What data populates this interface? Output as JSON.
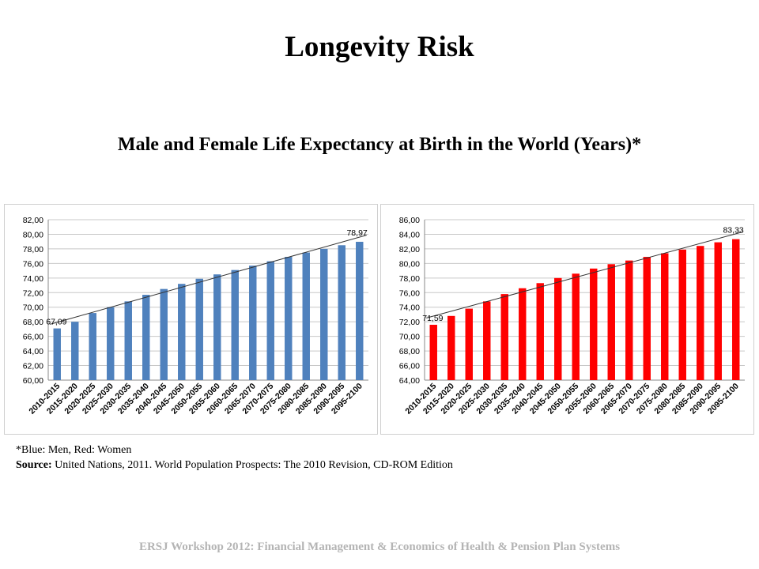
{
  "slide": {
    "title": "Longevity Risk",
    "subtitle": "Male and Female Life Expectancy at Birth in the World (Years)*",
    "note": "*Blue: Men, Red: Women",
    "source_label": "Source:",
    "source_text": "United Nations, 2011. World Population Prospects: The 2010 Revision, CD-ROM Edition",
    "footer": "ERSJ Workshop 2012: Financial Management & Economics of  Health & Pension Plan Systems"
  },
  "chart_data": [
    {
      "type": "bar",
      "categories": [
        "2010-2015",
        "2015-2020",
        "2020-2025",
        "2025-2030",
        "2030-2035",
        "2035-2040",
        "2040-2045",
        "2045-2050",
        "2050-2055",
        "2055-2060",
        "2060-2065",
        "2065-2070",
        "2070-2075",
        "2075-2080",
        "2080-2085",
        "2085-2090",
        "2090-2095",
        "2095-2100"
      ],
      "values": [
        67.09,
        68.0,
        69.2,
        70.0,
        70.8,
        71.7,
        72.5,
        73.2,
        73.9,
        74.5,
        75.1,
        75.7,
        76.3,
        76.9,
        77.5,
        78.0,
        78.5,
        78.97
      ],
      "ylim": [
        60,
        82
      ],
      "yticks": [
        "60,00",
        "62,00",
        "64,00",
        "66,00",
        "68,00",
        "70,00",
        "72,00",
        "74,00",
        "76,00",
        "78,00",
        "80,00",
        "82,00"
      ],
      "data_labels": {
        "first": "67,09",
        "last": "78,97"
      },
      "trendline": true,
      "color": "#4f81bd",
      "grid": true
    },
    {
      "type": "bar",
      "categories": [
        "2010-2015",
        "2015-2020",
        "2020-2025",
        "2025-2030",
        "2030-2035",
        "2035-2040",
        "2040-2045",
        "2045-2050",
        "2050-2055",
        "2055-2060",
        "2060-2065",
        "2065-2070",
        "2070-2075",
        "2075-2080",
        "2080-2085",
        "2085-2090",
        "2090-2095",
        "2095-2100"
      ],
      "values": [
        71.59,
        72.8,
        73.8,
        74.8,
        75.8,
        76.6,
        77.3,
        78.0,
        78.6,
        79.3,
        79.9,
        80.4,
        80.9,
        81.4,
        81.9,
        82.4,
        82.9,
        83.33
      ],
      "ylim": [
        64,
        86
      ],
      "yticks": [
        "64,00",
        "66,00",
        "68,00",
        "70,00",
        "72,00",
        "74,00",
        "76,00",
        "78,00",
        "80,00",
        "82,00",
        "84,00",
        "86,00"
      ],
      "data_labels": {
        "first": "71,59",
        "last": "83,33"
      },
      "trendline": true,
      "color": "#ff0000",
      "grid": true
    }
  ]
}
